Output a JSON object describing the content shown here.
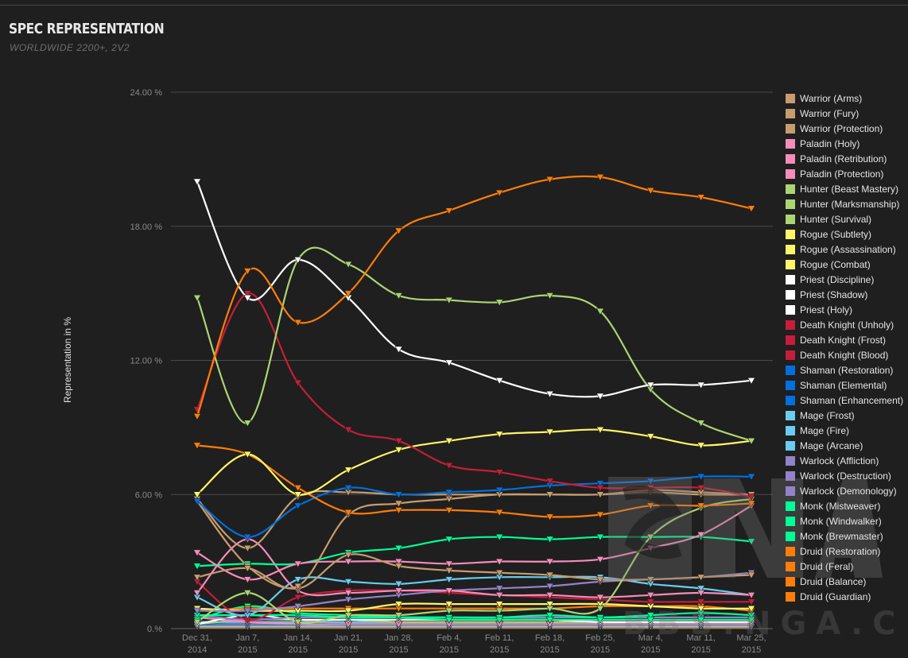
{
  "header": {
    "title": "SPEC REPRESENTATION",
    "subtitle": "WORLDWIDE 2200+, 2V2"
  },
  "watermark": {
    "text": "BBS.NGA.CN"
  },
  "chart_data": {
    "type": "line",
    "title": "SPEC REPRESENTATION",
    "subtitle": "WORLDWIDE 2200+, 2V2",
    "xlabel": "",
    "ylabel": "Representation in %",
    "ylim": [
      0,
      24
    ],
    "yticks": [
      "0.%",
      "6.00 %",
      "12.00 %",
      "18.00 %",
      "24.00 %"
    ],
    "ytick_values": [
      0,
      6,
      12,
      18,
      24
    ],
    "grid": true,
    "legend_position": "right",
    "categories": [
      [
        "Dec 31,",
        "2014"
      ],
      [
        "Jan 7,",
        "2015"
      ],
      [
        "Jan 14,",
        "2015"
      ],
      [
        "Jan 21,",
        "2015"
      ],
      [
        "Jan 28,",
        "2015"
      ],
      [
        "Feb 4,",
        "2015"
      ],
      [
        "Feb 11,",
        "2015"
      ],
      [
        "Feb 18,",
        "2015"
      ],
      [
        "Feb 25,",
        "2015"
      ],
      [
        "Mar 4,",
        "2015"
      ],
      [
        "Mar 11,",
        "2015"
      ],
      [
        "Mar 25,",
        "2015"
      ]
    ],
    "series": [
      {
        "name": "Warrior (Arms)",
        "color": "#c79c6e",
        "values": [
          5.8,
          3.6,
          5.9,
          6.1,
          6.0,
          6.0,
          6.0,
          6.0,
          6.0,
          6.2,
          6.1,
          6.0
        ]
      },
      {
        "name": "Warrior (Fury)",
        "color": "#c79c6e",
        "values": [
          2.3,
          2.7,
          1.9,
          5.1,
          5.6,
          5.8,
          6.0,
          6.0,
          6.0,
          6.1,
          6.0,
          6.0
        ]
      },
      {
        "name": "Warrior (Protection)",
        "color": "#c79c6e",
        "values": [
          5.7,
          2.8,
          1.8,
          3.3,
          2.8,
          2.6,
          2.5,
          2.4,
          2.2,
          2.2,
          2.3,
          2.4
        ]
      },
      {
        "name": "Paladin (Holy)",
        "color": "#f58cba",
        "values": [
          3.4,
          2.2,
          2.9,
          3.0,
          3.0,
          2.9,
          3.0,
          3.0,
          3.1,
          3.6,
          4.2,
          5.5
        ]
      },
      {
        "name": "Paladin (Retribution)",
        "color": "#f58cba",
        "values": [
          1.6,
          4.0,
          1.7,
          1.6,
          1.7,
          1.7,
          1.5,
          1.5,
          1.4,
          1.5,
          1.6,
          1.5
        ]
      },
      {
        "name": "Paladin (Protection)",
        "color": "#f58cba",
        "values": [
          0.5,
          0.3,
          0.2,
          0.2,
          0.2,
          0.2,
          0.2,
          0.2,
          0.2,
          0.2,
          0.2,
          0.2
        ]
      },
      {
        "name": "Hunter (Beast Mastery)",
        "color": "#abd473",
        "values": [
          14.8,
          9.2,
          16.5,
          16.3,
          14.9,
          14.7,
          14.6,
          14.9,
          14.2,
          10.7,
          9.2,
          8.4
        ]
      },
      {
        "name": "Hunter (Marksmanship)",
        "color": "#abd473",
        "values": [
          0.3,
          1.6,
          0.3,
          0.6,
          0.6,
          0.8,
          0.8,
          0.9,
          0.9,
          4.1,
          5.4,
          5.8
        ]
      },
      {
        "name": "Hunter (Survival)",
        "color": "#abd473",
        "values": [
          0.2,
          0.4,
          0.4,
          0.4,
          0.3,
          0.3,
          0.3,
          0.3,
          0.3,
          0.3,
          0.3,
          0.3
        ]
      },
      {
        "name": "Rogue (Subtlety)",
        "color": "#fff569",
        "values": [
          6.0,
          7.8,
          6.0,
          7.1,
          8.0,
          8.4,
          8.7,
          8.8,
          8.9,
          8.6,
          8.2,
          8.4
        ]
      },
      {
        "name": "Rogue (Assassination)",
        "color": "#fff569",
        "values": [
          0.9,
          0.8,
          0.8,
          0.8,
          1.1,
          1.1,
          1.1,
          1.1,
          1.1,
          1.0,
          0.9,
          0.9
        ]
      },
      {
        "name": "Rogue (Combat)",
        "color": "#fff569",
        "values": [
          0.3,
          0.3,
          0.3,
          0.3,
          0.3,
          0.3,
          0.3,
          0.3,
          0.3,
          0.3,
          0.3,
          0.3
        ]
      },
      {
        "name": "Priest (Discipline)",
        "color": "#ffffff",
        "values": [
          20.0,
          14.8,
          16.5,
          14.8,
          12.5,
          11.9,
          11.1,
          10.5,
          10.4,
          10.9,
          10.9,
          11.1
        ]
      },
      {
        "name": "Priest (Shadow)",
        "color": "#ffffff",
        "values": [
          0.2,
          0.6,
          0.4,
          0.4,
          0.4,
          0.4,
          0.4,
          0.4,
          0.3,
          0.3,
          0.3,
          0.3
        ]
      },
      {
        "name": "Priest (Holy)",
        "color": "#ffffff",
        "values": [
          0.1,
          0.1,
          0.1,
          0.1,
          0.1,
          0.1,
          0.1,
          0.1,
          0.1,
          0.1,
          0.1,
          0.1
        ]
      },
      {
        "name": "Death Knight (Unholy)",
        "color": "#c41e3a",
        "values": [
          9.8,
          15.0,
          11.0,
          8.9,
          8.4,
          7.3,
          7.0,
          6.6,
          6.3,
          6.3,
          6.3,
          5.9
        ]
      },
      {
        "name": "Death Knight (Frost)",
        "color": "#c41e3a",
        "values": [
          2.1,
          0.4,
          1.4,
          1.7,
          1.7,
          1.6,
          1.5,
          1.4,
          1.3,
          1.2,
          1.2,
          1.2
        ]
      },
      {
        "name": "Death Knight (Blood)",
        "color": "#c41e3a",
        "values": [
          0.1,
          0.1,
          0.1,
          0.1,
          0.1,
          0.1,
          0.1,
          0.1,
          0.1,
          0.1,
          0.1,
          0.1
        ]
      },
      {
        "name": "Shaman (Restoration)",
        "color": "#0070de",
        "values": [
          5.7,
          4.1,
          5.5,
          6.3,
          6.0,
          6.1,
          6.2,
          6.4,
          6.5,
          6.6,
          6.8,
          6.8
        ]
      },
      {
        "name": "Shaman (Elemental)",
        "color": "#0070de",
        "values": [
          0.2,
          0.3,
          0.2,
          0.2,
          0.2,
          0.2,
          0.2,
          0.2,
          0.2,
          0.2,
          0.2,
          0.2
        ]
      },
      {
        "name": "Shaman (Enhancement)",
        "color": "#0070de",
        "values": [
          0.1,
          0.1,
          0.1,
          0.1,
          0.1,
          0.1,
          0.1,
          0.1,
          0.1,
          0.1,
          0.1,
          0.1
        ]
      },
      {
        "name": "Mage (Frost)",
        "color": "#69ccf0",
        "values": [
          1.4,
          0.6,
          2.2,
          2.1,
          2.0,
          2.2,
          2.3,
          2.3,
          2.3,
          2.0,
          1.8,
          1.5
        ]
      },
      {
        "name": "Mage (Fire)",
        "color": "#69ccf0",
        "values": [
          0.3,
          0.3,
          0.3,
          0.3,
          0.3,
          0.3,
          0.3,
          0.3,
          0.3,
          0.3,
          0.3,
          0.3
        ]
      },
      {
        "name": "Mage (Arcane)",
        "color": "#69ccf0",
        "values": [
          0.1,
          0.1,
          0.1,
          0.1,
          0.1,
          0.1,
          0.1,
          0.1,
          0.1,
          0.1,
          0.1,
          0.1
        ]
      },
      {
        "name": "Warlock (Affliction)",
        "color": "#9482c9",
        "values": [
          0.8,
          0.8,
          1.0,
          1.3,
          1.5,
          1.7,
          1.8,
          1.9,
          2.1,
          2.2,
          2.3,
          2.5
        ]
      },
      {
        "name": "Warlock (Destruction)",
        "color": "#9482c9",
        "values": [
          0.6,
          0.4,
          0.5,
          0.5,
          0.5,
          0.5,
          0.5,
          0.5,
          0.5,
          0.5,
          0.5,
          0.5
        ]
      },
      {
        "name": "Warlock (Demonology)",
        "color": "#9482c9",
        "values": [
          0.2,
          0.2,
          0.2,
          0.2,
          0.2,
          0.2,
          0.2,
          0.2,
          0.2,
          0.2,
          0.2,
          0.2
        ]
      },
      {
        "name": "Monk (Mistweaver)",
        "color": "#00ff96",
        "values": [
          2.8,
          2.9,
          2.9,
          3.4,
          3.6,
          4.0,
          4.1,
          4.0,
          4.1,
          4.1,
          4.1,
          3.9
        ]
      },
      {
        "name": "Monk (Windwalker)",
        "color": "#00ff96",
        "values": [
          0.6,
          0.6,
          0.6,
          0.5,
          0.5,
          0.5,
          0.5,
          0.6,
          0.5,
          0.6,
          0.7,
          0.6
        ]
      },
      {
        "name": "Monk (Brewmaster)",
        "color": "#00ff96",
        "values": [
          0.4,
          1.0,
          0.7,
          0.6,
          0.5,
          0.4,
          0.4,
          0.4,
          0.4,
          0.4,
          0.4,
          0.4
        ]
      },
      {
        "name": "Druid (Restoration)",
        "color": "#ff7d0a",
        "values": [
          9.5,
          16.0,
          13.7,
          15.0,
          17.8,
          18.7,
          19.5,
          20.1,
          20.2,
          19.6,
          19.3,
          18.8
        ]
      },
      {
        "name": "Druid (Feral)",
        "color": "#ff7d0a",
        "values": [
          8.2,
          7.8,
          6.3,
          5.2,
          5.3,
          5.3,
          5.2,
          5.0,
          5.1,
          5.5,
          5.5,
          5.6
        ]
      },
      {
        "name": "Druid (Balance)",
        "color": "#ff7d0a",
        "values": [
          0.8,
          0.9,
          0.9,
          0.9,
          0.9,
          0.9,
          0.9,
          0.9,
          1.0,
          1.0,
          1.0,
          0.8
        ]
      },
      {
        "name": "Druid (Guardian)",
        "color": "#ff7d0a",
        "values": [
          0.05,
          0.05,
          0.05,
          0.05,
          0.05,
          0.05,
          0.05,
          0.05,
          0.05,
          0.05,
          0.05,
          0.05
        ]
      }
    ]
  }
}
